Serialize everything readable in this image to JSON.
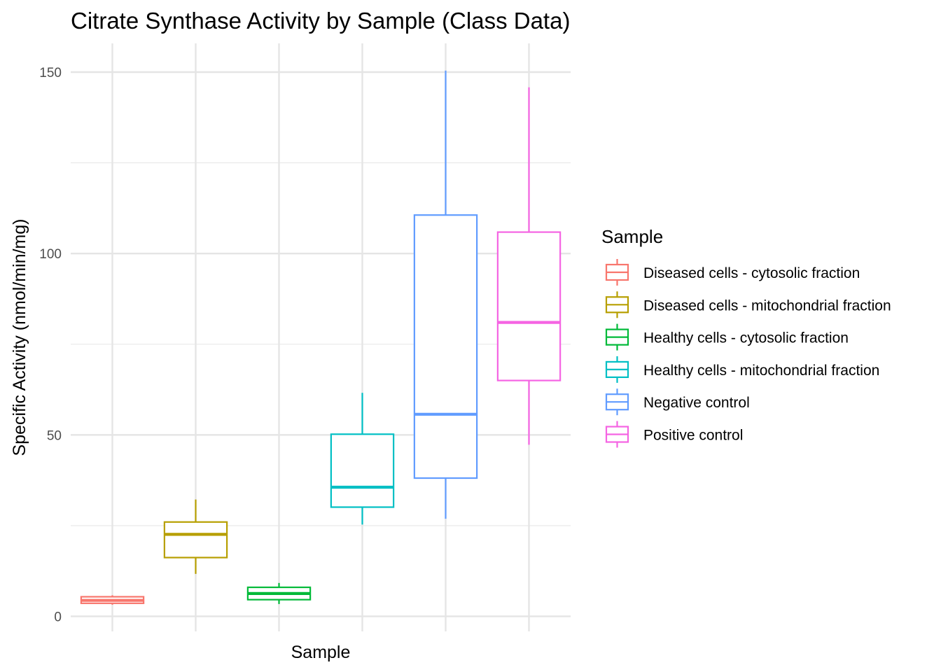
{
  "chart_data": {
    "type": "boxplot",
    "title": "Citrate Synthase Activity by Sample (Class Data)",
    "xlabel": "Sample",
    "ylabel": "Specific Activity (nmol/min/mg)",
    "ylim": [
      -4,
      158
    ],
    "yticks": [
      0,
      50,
      100,
      150
    ],
    "grid": true,
    "legend": {
      "title": "Sample",
      "position": "right"
    },
    "series": [
      {
        "name": "Diseased cells - cytosolic fraction",
        "color": "#F8766D",
        "whisker_low": 3.2,
        "q1": 3.6,
        "median": 4.4,
        "q3": 5.4,
        "whisker_high": 5.8
      },
      {
        "name": "Diseased cells - mitochondrial fraction",
        "color": "#B79F00",
        "whisker_low": 11.7,
        "q1": 16.2,
        "median": 22.6,
        "q3": 26.0,
        "whisker_high": 32.2
      },
      {
        "name": "Healthy cells - cytosolic fraction",
        "color": "#00BA38",
        "whisker_low": 3.4,
        "q1": 4.6,
        "median": 6.3,
        "q3": 8.0,
        "whisker_high": 9.2
      },
      {
        "name": "Healthy cells - mitochondrial fraction",
        "color": "#00BFC4",
        "whisker_low": 25.3,
        "q1": 30.1,
        "median": 35.6,
        "q3": 50.2,
        "whisker_high": 61.6
      },
      {
        "name": "Negative control",
        "color": "#619CFF",
        "whisker_low": 26.9,
        "q1": 38.1,
        "median": 55.7,
        "q3": 110.6,
        "whisker_high": 150.4
      },
      {
        "name": "Positive control",
        "color": "#F564E3",
        "whisker_low": 47.3,
        "q1": 65.0,
        "median": 81.0,
        "q3": 105.9,
        "whisker_high": 145.8
      }
    ]
  }
}
